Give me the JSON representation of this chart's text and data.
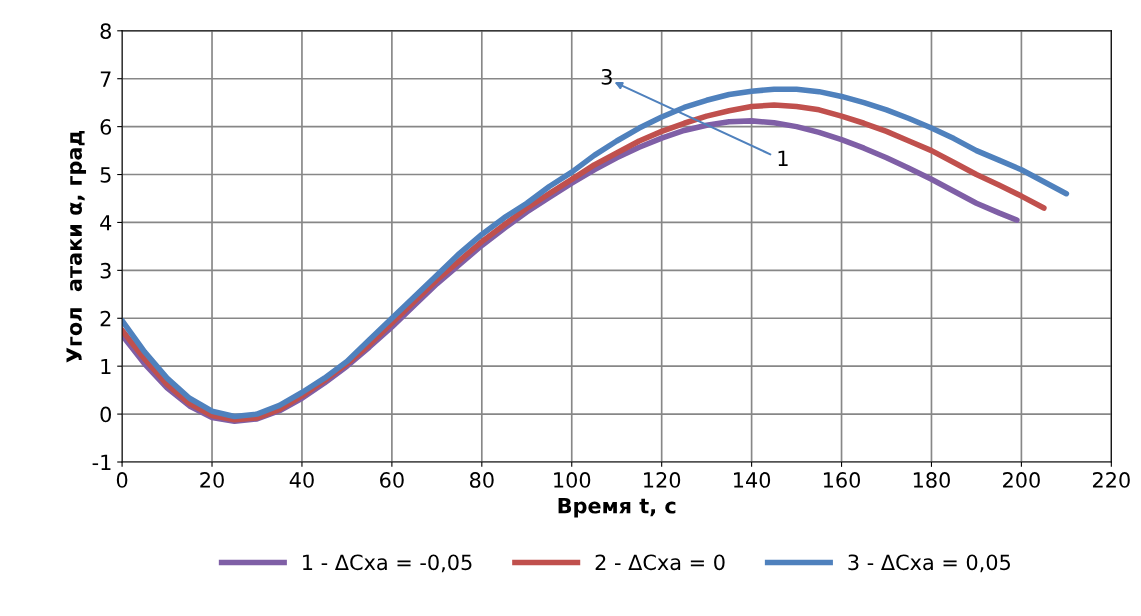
{
  "chart_data": {
    "type": "line",
    "xlabel": "Время t, с",
    "ylabel": "Угол  атаки α, град",
    "xlim": [
      0,
      220
    ],
    "xticks": [
      0,
      20,
      40,
      60,
      80,
      100,
      120,
      140,
      160,
      180,
      200,
      220
    ],
    "ylim": [
      -1,
      8
    ],
    "yticks": [
      -1,
      0,
      1,
      2,
      3,
      4,
      5,
      6,
      7,
      8
    ],
    "grid": true,
    "legend": "bottom",
    "marker": "none",
    "line_style": "solid",
    "series": [
      {
        "name": "1 - ΔCxa = -0,05",
        "color": "#7f5fa6",
        "x": [
          0,
          5,
          10,
          15,
          20,
          25,
          30,
          35,
          40,
          45,
          50,
          55,
          60,
          65,
          70,
          75,
          80,
          85,
          90,
          95,
          100,
          105,
          110,
          115,
          120,
          125,
          130,
          135,
          140,
          145,
          150,
          155,
          160,
          165,
          170,
          175,
          180,
          185,
          190,
          195,
          199
        ],
        "values": [
          1.65,
          1.05,
          0.55,
          0.17,
          -0.07,
          -0.15,
          -0.1,
          0.07,
          0.33,
          0.65,
          1.0,
          1.4,
          1.82,
          2.27,
          2.72,
          3.12,
          3.52,
          3.88,
          4.22,
          4.52,
          4.82,
          5.1,
          5.35,
          5.57,
          5.76,
          5.92,
          6.03,
          6.1,
          6.12,
          6.08,
          6.0,
          5.88,
          5.73,
          5.55,
          5.35,
          5.13,
          4.9,
          4.65,
          4.4,
          4.2,
          4.05
        ]
      },
      {
        "name": "2 - ΔCxa = 0",
        "color": "#c0504d",
        "x": [
          0,
          5,
          10,
          15,
          20,
          25,
          30,
          35,
          40,
          45,
          50,
          55,
          60,
          65,
          70,
          75,
          80,
          85,
          90,
          95,
          100,
          105,
          110,
          115,
          120,
          125,
          130,
          135,
          140,
          145,
          150,
          155,
          160,
          165,
          170,
          175,
          180,
          185,
          190,
          195,
          200,
          205
        ],
        "values": [
          1.75,
          1.15,
          0.62,
          0.22,
          -0.03,
          -0.12,
          -0.08,
          0.1,
          0.38,
          0.7,
          1.05,
          1.45,
          1.9,
          2.35,
          2.8,
          3.2,
          3.6,
          3.95,
          4.3,
          4.6,
          4.9,
          5.2,
          5.45,
          5.7,
          5.9,
          6.07,
          6.22,
          6.33,
          6.42,
          6.45,
          6.42,
          6.35,
          6.22,
          6.07,
          5.9,
          5.7,
          5.5,
          5.25,
          5.0,
          4.78,
          4.55,
          4.3
        ]
      },
      {
        "name": "3 - ΔCxa = 0,05",
        "color": "#4f81bd",
        "x": [
          0,
          5,
          10,
          15,
          20,
          25,
          30,
          35,
          40,
          45,
          50,
          55,
          60,
          65,
          70,
          75,
          80,
          85,
          90,
          95,
          100,
          105,
          110,
          115,
          120,
          125,
          130,
          135,
          140,
          145,
          150,
          155,
          160,
          165,
          170,
          175,
          180,
          185,
          190,
          195,
          200,
          205,
          210
        ],
        "values": [
          1.95,
          1.3,
          0.75,
          0.33,
          0.06,
          -0.05,
          0.0,
          0.18,
          0.45,
          0.75,
          1.1,
          1.55,
          2.0,
          2.45,
          2.9,
          3.35,
          3.75,
          4.1,
          4.4,
          4.75,
          5.05,
          5.4,
          5.7,
          5.97,
          6.2,
          6.4,
          6.55,
          6.67,
          6.74,
          6.78,
          6.78,
          6.73,
          6.63,
          6.5,
          6.35,
          6.17,
          5.97,
          5.75,
          5.5,
          5.3,
          5.1,
          4.85,
          4.6
        ]
      }
    ],
    "annotations": [
      "3",
      "1"
    ]
  }
}
